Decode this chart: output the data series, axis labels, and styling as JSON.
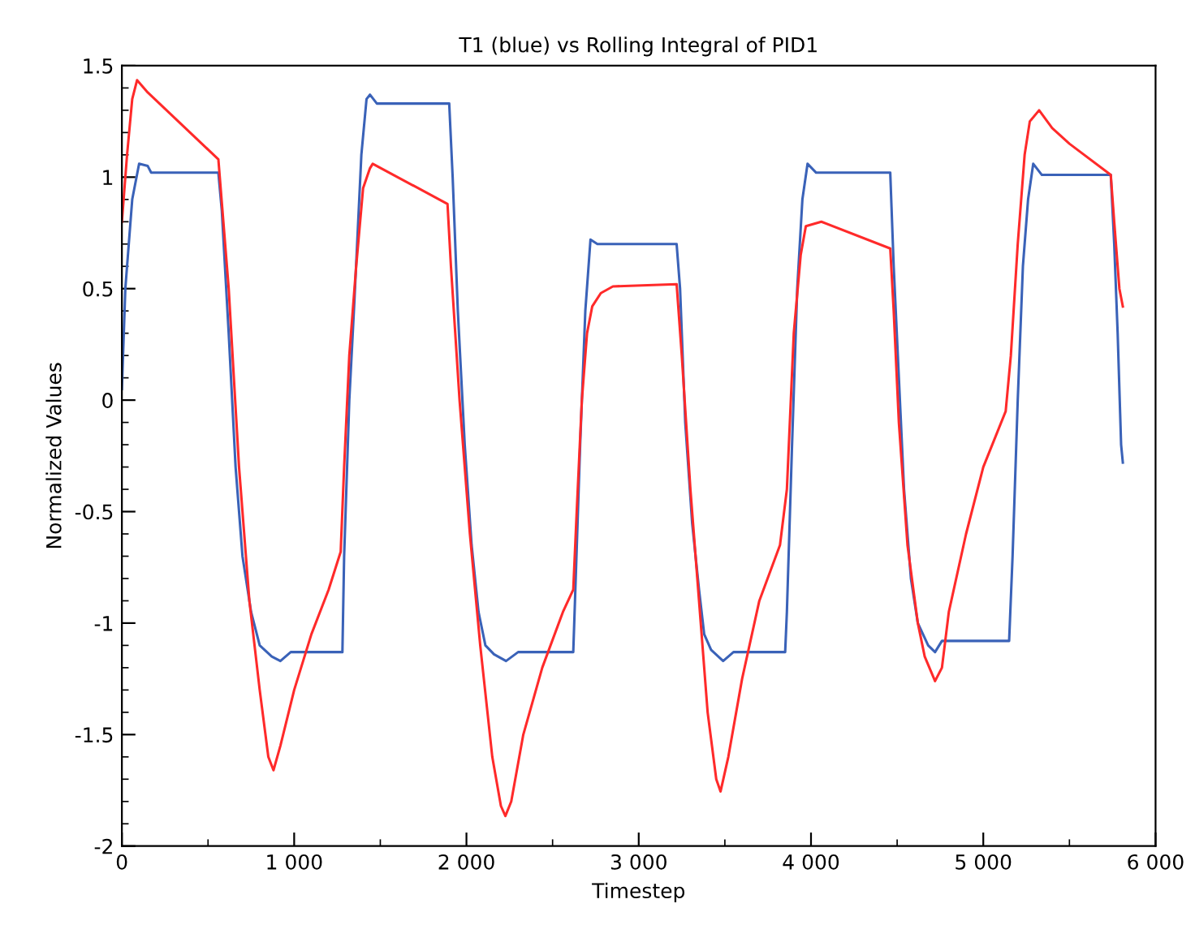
{
  "chart_data": {
    "type": "line",
    "title": "T1 (blue) vs Rolling Integral of PID1",
    "xlabel": "Timestep",
    "ylabel": "Normalized Values",
    "xlim": [
      0,
      6000
    ],
    "ylim": [
      -2,
      1.5
    ],
    "xticks": [
      0,
      {
        "value": 1000,
        "label": "1 000"
      },
      {
        "value": 2000,
        "label": "2 000"
      },
      {
        "value": 3000,
        "label": "3 000"
      },
      {
        "value": 4000,
        "label": "4 000"
      },
      {
        "value": 5000,
        "label": "5 000"
      },
      {
        "value": 6000,
        "label": "6 000"
      }
    ],
    "yticks": [
      -2,
      -1.5,
      -1,
      -0.5,
      0,
      0.5,
      1,
      1.5
    ],
    "grid": false,
    "legend": false,
    "series": [
      {
        "color": "#3a62b8",
        "x": [
          0,
          20,
          60,
          100,
          150,
          170,
          560,
          580,
          620,
          660,
          700,
          750,
          800,
          870,
          920,
          980,
          1280,
          1290,
          1320,
          1350,
          1390,
          1420,
          1440,
          1480,
          1900,
          1920,
          1950,
          1990,
          2030,
          2070,
          2110,
          2160,
          2230,
          2300,
          2620,
          2630,
          2660,
          2690,
          2720,
          2760,
          3220,
          3240,
          3270,
          3310,
          3350,
          3380,
          3420,
          3490,
          3550,
          3850,
          3860,
          3890,
          3920,
          3950,
          3980,
          4030,
          4460,
          4480,
          4510,
          4540,
          4580,
          4620,
          4680,
          4720,
          4760,
          5150,
          5170,
          5200,
          5230,
          5260,
          5290,
          5340,
          5740,
          5760,
          5780,
          5800,
          5810
        ],
        "values": [
          0.05,
          0.5,
          0.9,
          1.06,
          1.05,
          1.02,
          1.02,
          0.85,
          0.3,
          -0.3,
          -0.7,
          -0.95,
          -1.1,
          -1.15,
          -1.17,
          -1.13,
          -1.13,
          -0.7,
          0,
          0.45,
          1.1,
          1.35,
          1.37,
          1.33,
          1.33,
          1.0,
          0.4,
          -0.2,
          -0.65,
          -0.95,
          -1.1,
          -1.14,
          -1.17,
          -1.13,
          -1.13,
          -0.9,
          -0.2,
          0.4,
          0.72,
          0.7,
          0.7,
          0.5,
          -0.1,
          -0.55,
          -0.85,
          -1.05,
          -1.12,
          -1.17,
          -1.13,
          -1.13,
          -0.95,
          -0.2,
          0.5,
          0.9,
          1.06,
          1.02,
          1.02,
          0.6,
          0.1,
          -0.4,
          -0.8,
          -1.0,
          -1.1,
          -1.13,
          -1.08,
          -1.08,
          -0.7,
          0.0,
          0.6,
          0.9,
          1.06,
          1.01,
          1.01,
          0.7,
          0.3,
          -0.2,
          -0.28
        ]
      },
      {
        "color": "#ff2a2a",
        "x": [
          0,
          30,
          60,
          88,
          150,
          560,
          620,
          680,
          740,
          800,
          850,
          880,
          920,
          1000,
          1100,
          1200,
          1270,
          1290,
          1320,
          1360,
          1400,
          1440,
          1456,
          1890,
          1910,
          1960,
          2020,
          2080,
          2150,
          2200,
          2226,
          2260,
          2330,
          2440,
          2560,
          2620,
          2640,
          2670,
          2700,
          2730,
          2780,
          2850,
          3220,
          3250,
          3300,
          3350,
          3400,
          3450,
          3475,
          3520,
          3600,
          3700,
          3820,
          3860,
          3900,
          3940,
          3970,
          4060,
          4460,
          4480,
          4510,
          4560,
          4620,
          4660,
          4720,
          4760,
          4800,
          4900,
          5000,
          5130,
          5160,
          5200,
          5240,
          5270,
          5324,
          5400,
          5500,
          5740,
          5760,
          5790,
          5810
        ],
        "values": [
          0.8,
          1.1,
          1.35,
          1.435,
          1.38,
          1.08,
          0.5,
          -0.3,
          -0.9,
          -1.3,
          -1.6,
          -1.66,
          -1.55,
          -1.3,
          -1.05,
          -0.85,
          -0.68,
          -0.3,
          0.2,
          0.6,
          0.95,
          1.04,
          1.06,
          0.88,
          0.6,
          0.0,
          -0.6,
          -1.1,
          -1.6,
          -1.82,
          -1.865,
          -1.8,
          -1.5,
          -1.2,
          -0.95,
          -0.85,
          -0.5,
          0.0,
          0.3,
          0.42,
          0.48,
          0.51,
          0.52,
          0.2,
          -0.4,
          -0.9,
          -1.4,
          -1.7,
          -1.755,
          -1.6,
          -1.25,
          -0.9,
          -0.65,
          -0.4,
          0.3,
          0.65,
          0.78,
          0.8,
          0.68,
          0.4,
          -0.1,
          -0.65,
          -1.0,
          -1.15,
          -1.26,
          -1.2,
          -0.95,
          -0.6,
          -0.3,
          -0.05,
          0.2,
          0.7,
          1.1,
          1.25,
          1.3,
          1.22,
          1.15,
          1.01,
          0.8,
          0.5,
          0.42
        ]
      }
    ]
  }
}
